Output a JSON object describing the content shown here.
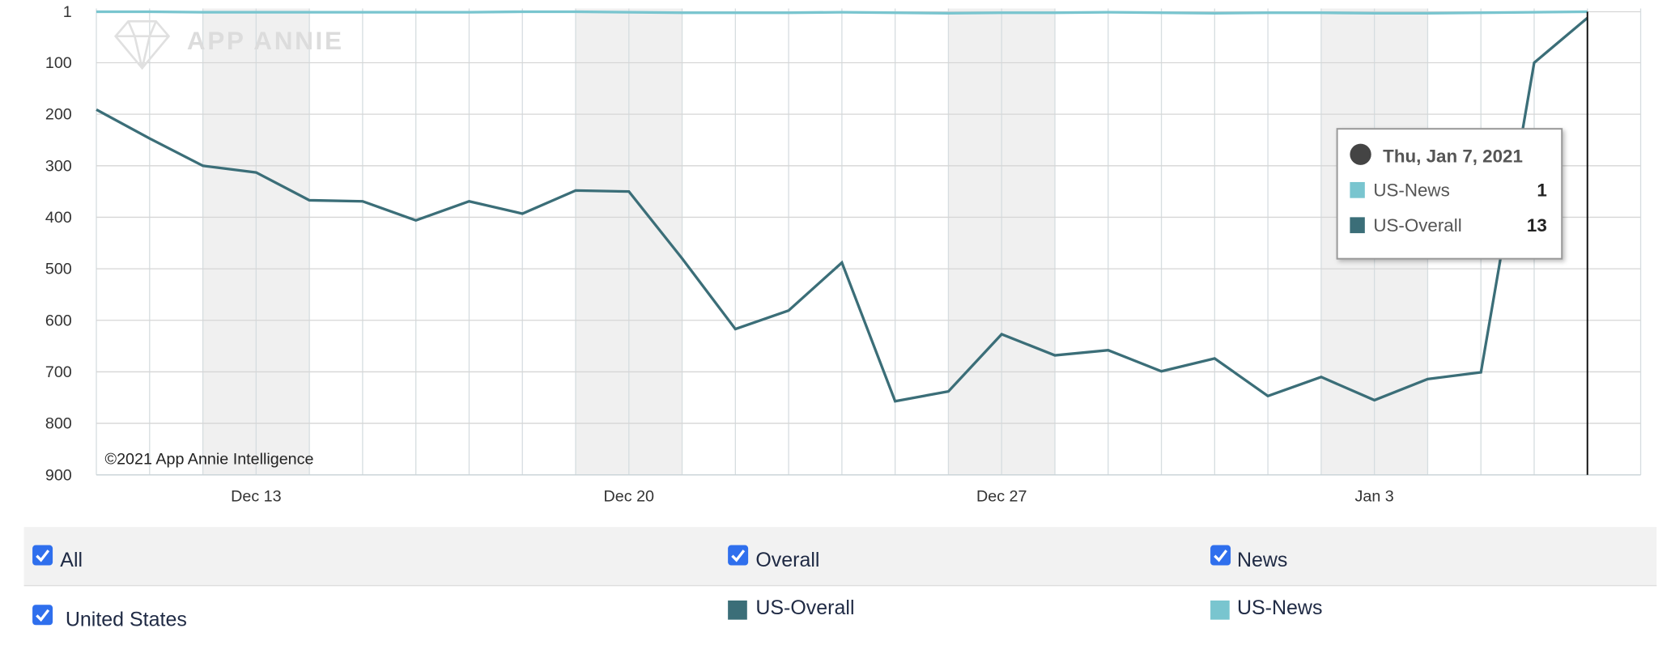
{
  "chart_data": {
    "type": "line",
    "watermark": "APP ANNIE",
    "credit": "©2021 App Annie Intelligence",
    "categories": [
      null,
      null,
      null,
      "Dec 13",
      null,
      null,
      null,
      null,
      null,
      null,
      "Dec 20",
      null,
      null,
      null,
      null,
      null,
      null,
      "Dec 27",
      null,
      null,
      null,
      null,
      null,
      null,
      "Jan 3",
      null,
      null,
      null,
      null
    ],
    "ylim": [
      1,
      900
    ],
    "yticks": [
      1,
      100,
      200,
      300,
      400,
      500,
      600,
      700,
      800,
      900
    ],
    "y_inverted": true,
    "grid": true,
    "series": [
      {
        "name": "US-Overall",
        "color": "#3b6e78",
        "values": [
          191,
          247,
          300,
          313,
          367,
          369,
          406,
          369,
          393,
          348,
          350,
          480,
          617,
          581,
          488,
          757,
          738,
          627,
          668,
          658,
          699,
          674,
          747,
          710,
          755,
          714,
          701,
          100,
          13
        ]
      },
      {
        "name": "US-News",
        "color": "#79c5cf",
        "values": [
          1,
          1,
          2,
          2,
          2,
          2,
          2,
          2,
          1,
          1,
          2,
          3,
          3,
          3,
          2,
          3,
          4,
          3,
          3,
          2,
          3,
          4,
          3,
          3,
          4,
          4,
          3,
          2,
          1
        ]
      }
    ],
    "tooltip": {
      "title": "Thu, Jan 7, 2021"
    },
    "filters": [
      "All",
      "Overall",
      "News",
      "United States"
    ]
  }
}
